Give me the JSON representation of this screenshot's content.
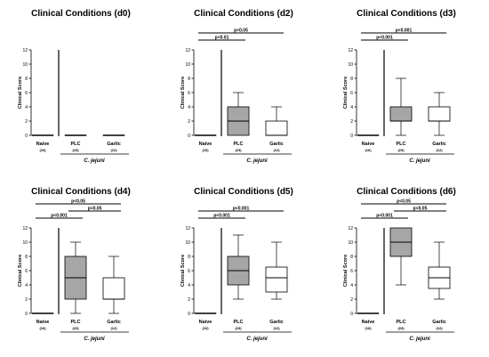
{
  "colors": {
    "ink": "#000000",
    "plc_fill": "#a6a6a6",
    "garlic_fill": "#ffffff"
  },
  "chart_data": [
    {
      "type": "box",
      "title": "Clinical Conditions (d0)",
      "ylabel": "Clinical Score",
      "ylim": [
        0,
        12
      ],
      "yticks": [
        0,
        2,
        4,
        6,
        8,
        10,
        12
      ],
      "categories": [
        "Naive",
        "PLC",
        "Garlic"
      ],
      "n_labels": [
        "(16)",
        "(23)",
        "(12)"
      ],
      "group_label": "C. jejuni",
      "boxes": [
        {
          "min": 0,
          "q1": 0,
          "median": 0,
          "q3": 0,
          "max": 0
        },
        {
          "min": 0,
          "q1": 0,
          "median": 0,
          "q3": 0,
          "max": 0
        },
        {
          "min": 0,
          "q1": 0,
          "median": 0,
          "q3": 0,
          "max": 0
        }
      ],
      "significance": []
    },
    {
      "type": "box",
      "title": "Clinical Conditions (d2)",
      "ylabel": "Clinical Score",
      "ylim": [
        0,
        12
      ],
      "yticks": [
        0,
        2,
        4,
        6,
        8,
        10,
        12
      ],
      "categories": [
        "Naive",
        "PLC",
        "Garlic"
      ],
      "n_labels": [
        "(16)",
        "(23)",
        "(12)"
      ],
      "group_label": "C. jejuni",
      "boxes": [
        {
          "min": 0,
          "q1": 0,
          "median": 0,
          "q3": 0,
          "max": 0
        },
        {
          "min": 0,
          "q1": 0,
          "median": 2,
          "q3": 4,
          "max": 6
        },
        {
          "min": 0,
          "q1": 0,
          "median": 0,
          "q3": 2,
          "max": 4
        }
      ],
      "significance": [
        {
          "from": 0,
          "to": 1,
          "label": "p<0.01"
        },
        {
          "from": 0,
          "to": 2,
          "label": "p<0.05"
        }
      ]
    },
    {
      "type": "box",
      "title": "Clinical Conditions (d3)",
      "ylabel": "Clinical Score",
      "ylim": [
        0,
        12
      ],
      "yticks": [
        0,
        2,
        4,
        6,
        8,
        10,
        12
      ],
      "categories": [
        "Naive",
        "PLC",
        "Garlic"
      ],
      "n_labels": [
        "(16)",
        "(23)",
        "(12)"
      ],
      "group_label": "C. jejuni",
      "boxes": [
        {
          "min": 0,
          "q1": 0,
          "median": 0,
          "q3": 0,
          "max": 0
        },
        {
          "min": 0,
          "q1": 2,
          "median": 2,
          "q3": 4,
          "max": 8
        },
        {
          "min": 0,
          "q1": 2,
          "median": 2,
          "q3": 4,
          "max": 6
        }
      ],
      "significance": [
        {
          "from": 0,
          "to": 1,
          "label": "p<0.001"
        },
        {
          "from": 0,
          "to": 2,
          "label": "p<0.001"
        }
      ]
    },
    {
      "type": "box",
      "title": "Clinical Conditions (d4)",
      "ylabel": "Clinical Score",
      "ylim": [
        0,
        12
      ],
      "yticks": [
        0,
        2,
        4,
        6,
        8,
        10,
        12
      ],
      "categories": [
        "Naive",
        "PLC",
        "Garlic"
      ],
      "n_labels": [
        "(16)",
        "(23)",
        "(12)"
      ],
      "group_label": "C. jejuni",
      "boxes": [
        {
          "min": 0,
          "q1": 0,
          "median": 0,
          "q3": 0,
          "max": 0
        },
        {
          "min": 0,
          "q1": 2,
          "median": 5,
          "q3": 8,
          "max": 10
        },
        {
          "min": 0,
          "q1": 2,
          "median": 2,
          "q3": 5,
          "max": 8
        }
      ],
      "significance": [
        {
          "from": 0,
          "to": 1,
          "label": "p<0.001"
        },
        {
          "from": 1,
          "to": 2,
          "label": "p<0.05"
        },
        {
          "from": 0,
          "to": 2,
          "label": "p<0.05"
        }
      ]
    },
    {
      "type": "box",
      "title": "Clinical Conditions (d5)",
      "ylabel": "Clinical Score",
      "ylim": [
        0,
        12
      ],
      "yticks": [
        0,
        2,
        4,
        6,
        8,
        10,
        12
      ],
      "categories": [
        "Naive",
        "PLC",
        "Garlic"
      ],
      "n_labels": [
        "(16)",
        "(23)",
        "(12)"
      ],
      "group_label": "C. jejuni",
      "boxes": [
        {
          "min": 0,
          "q1": 0,
          "median": 0,
          "q3": 0,
          "max": 0
        },
        {
          "min": 2,
          "q1": 4,
          "median": 6,
          "q3": 8,
          "max": 11
        },
        {
          "min": 2,
          "q1": 3,
          "median": 5,
          "q3": 6.5,
          "max": 10
        }
      ],
      "significance": [
        {
          "from": 0,
          "to": 1,
          "label": "p<0.001"
        },
        {
          "from": 0,
          "to": 2,
          "label": "p<0.001"
        }
      ]
    },
    {
      "type": "box",
      "title": "Clinical Conditions (d6)",
      "ylabel": "Clinical Score",
      "ylim": [
        0,
        12
      ],
      "yticks": [
        0,
        2,
        4,
        6,
        8,
        10,
        12
      ],
      "categories": [
        "Naive",
        "PLC",
        "Garlic"
      ],
      "n_labels": [
        "(16)",
        "(23)",
        "(12)"
      ],
      "group_label": "C. jejuni",
      "boxes": [
        {
          "min": 0,
          "q1": 0,
          "median": 0,
          "q3": 0,
          "max": 0
        },
        {
          "min": 4,
          "q1": 8,
          "median": 10,
          "q3": 12,
          "max": 12
        },
        {
          "min": 2,
          "q1": 3.5,
          "median": 5,
          "q3": 6.5,
          "max": 10
        }
      ],
      "significance": [
        {
          "from": 0,
          "to": 1,
          "label": "p<0.001"
        },
        {
          "from": 1,
          "to": 2,
          "label": "p<0.05"
        },
        {
          "from": 0,
          "to": 2,
          "label": "p<0.05"
        }
      ]
    }
  ]
}
